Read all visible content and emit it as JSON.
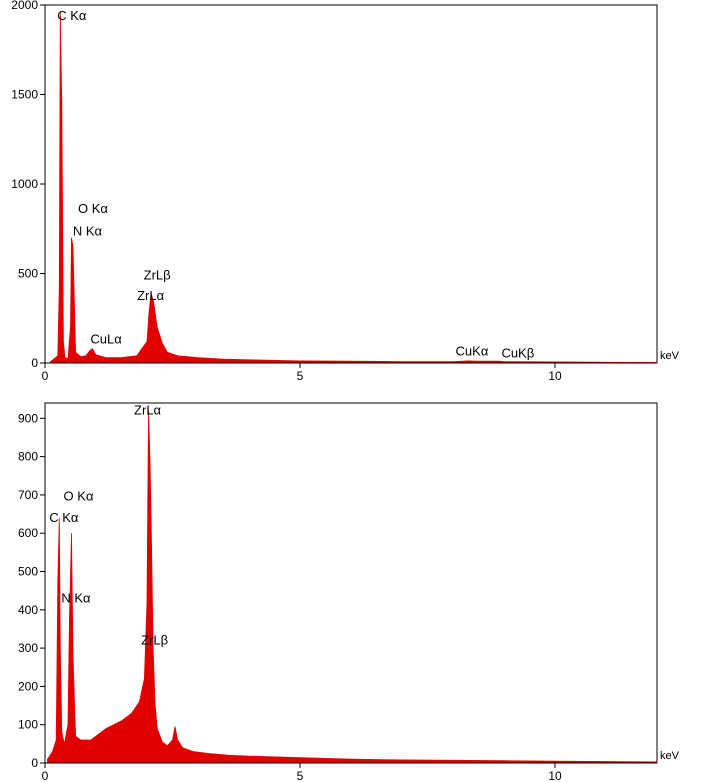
{
  "chart_data": [
    {
      "type": "area",
      "title": "",
      "xlabel": "keV",
      "ylabel": "",
      "xlim": [
        0,
        12
      ],
      "ylim": [
        0,
        2000
      ],
      "xticks": [
        "0",
        "5",
        "10"
      ],
      "yticks": [
        "0",
        "500",
        "1000",
        "1500",
        "2000"
      ],
      "grid": false,
      "fill_color": "#e00000",
      "series": [
        {
          "x": [
            0.1,
            0.25,
            0.28,
            0.3,
            0.33,
            0.36,
            0.39,
            0.45,
            0.5,
            0.52,
            0.55,
            0.6,
            0.7,
            0.8,
            0.88,
            0.93,
            1.0,
            1.2,
            1.5,
            1.8,
            2.0,
            2.04,
            2.08,
            2.13,
            2.2,
            2.3,
            2.4,
            2.6,
            3.0,
            3.5,
            4.0,
            5.0,
            6.0,
            7.0,
            8.0,
            8.3,
            8.5,
            8.9,
            9.0,
            10.0,
            11.0,
            12.0
          ],
          "y": [
            5,
            40,
            420,
            1960,
            1450,
            120,
            30,
            25,
            200,
            700,
            650,
            60,
            35,
            40,
            70,
            80,
            45,
            30,
            30,
            40,
            120,
            280,
            390,
            340,
            200,
            110,
            60,
            40,
            30,
            22,
            18,
            12,
            10,
            8,
            8,
            12,
            10,
            10,
            8,
            6,
            4,
            3
          ]
        }
      ],
      "annotations": [
        {
          "text": "C Kα",
          "x": 0.28,
          "y": 1960
        },
        {
          "text": "O Kα",
          "x": 0.53,
          "y": 860
        },
        {
          "text": "N Kα",
          "x": 0.39,
          "y": 780
        },
        {
          "text": "ZrLβ",
          "x": 2.13,
          "y": 500
        },
        {
          "text": "ZrLα",
          "x": 2.08,
          "y": 420
        },
        {
          "text": "CuLα",
          "x": 0.93,
          "y": 110
        },
        {
          "text": "CuKα",
          "x": 8.05,
          "y": 30
        },
        {
          "text": "CuKβ",
          "x": 8.95,
          "y": 30
        }
      ]
    },
    {
      "type": "area",
      "title": "",
      "xlabel": "keV",
      "ylabel": "",
      "xlim": [
        0,
        12
      ],
      "ylim": [
        0,
        940
      ],
      "xticks": [
        "0",
        "5",
        "10"
      ],
      "yticks": [
        "0",
        "100",
        "200",
        "300",
        "400",
        "500",
        "600",
        "700",
        "800",
        "900"
      ],
      "grid": false,
      "fill_color": "#e00000",
      "series": [
        {
          "x": [
            0.05,
            0.15,
            0.22,
            0.25,
            0.28,
            0.3,
            0.33,
            0.38,
            0.45,
            0.48,
            0.52,
            0.55,
            0.6,
            0.7,
            0.9,
            1.2,
            1.5,
            1.7,
            1.85,
            1.95,
            2.0,
            2.03,
            2.06,
            2.09,
            2.12,
            2.16,
            2.2,
            2.3,
            2.4,
            2.5,
            2.55,
            2.6,
            2.7,
            2.9,
            3.2,
            3.6,
            4.0,
            5.0,
            6.0,
            7.0,
            8.0,
            9.0,
            10.0,
            11.0,
            12.0
          ],
          "y": [
            10,
            30,
            60,
            470,
            640,
            300,
            80,
            50,
            100,
            380,
            600,
            280,
            70,
            60,
            60,
            90,
            110,
            130,
            160,
            220,
            420,
            920,
            780,
            560,
            300,
            150,
            90,
            55,
            45,
            60,
            95,
            60,
            40,
            30,
            25,
            20,
            18,
            14,
            10,
            8,
            7,
            6,
            5,
            4,
            3
          ]
        }
      ],
      "annotations": [
        {
          "text": "ZrLα",
          "x": 2.06,
          "y": 920
        },
        {
          "text": "O Kα",
          "x": 0.56,
          "y": 680
        },
        {
          "text": "C Kα",
          "x": 0.28,
          "y": 640
        },
        {
          "text": "N Kα",
          "x": 0.4,
          "y": 430
        },
        {
          "text": "ZrLβ",
          "x": 2.16,
          "y": 330
        }
      ]
    }
  ]
}
